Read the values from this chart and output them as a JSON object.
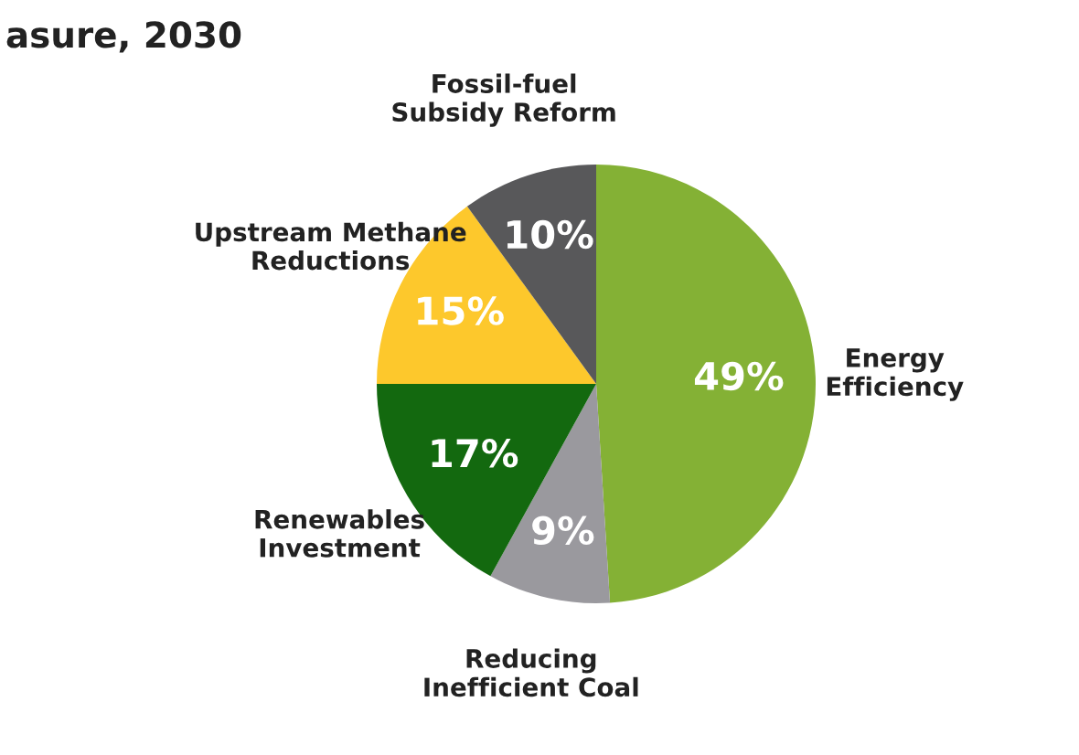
{
  "chart_data": {
    "type": "pie",
    "title": "asure, 2030",
    "categories": [
      "Energy\nEfficiency",
      "Reducing\nInefficient Coal",
      "Renewables\nInvestment",
      "Upstream Methane\nReductions",
      "Fossil-fuel\nSubsidy Reform"
    ],
    "values": [
      49,
      9,
      17,
      15,
      10
    ],
    "colors": [
      "#84b135",
      "#9a999e",
      "#13690f",
      "#fdc82c",
      "#58585a"
    ],
    "value_labels": [
      "49%",
      "9%",
      "17%",
      "15%",
      "10%"
    ]
  }
}
